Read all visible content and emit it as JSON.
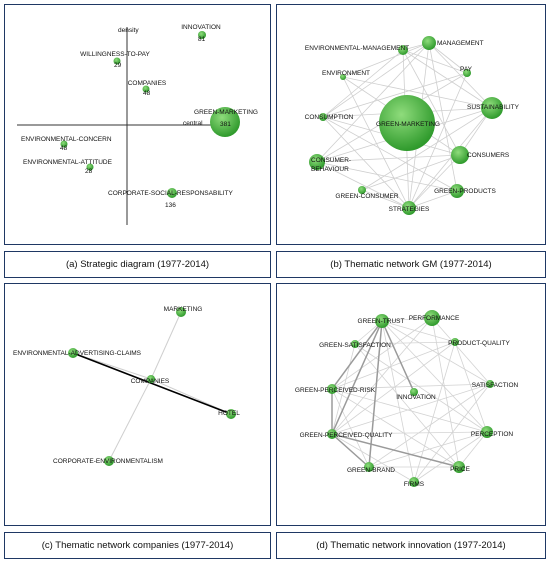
{
  "colors": {
    "node": "#3fae3a",
    "node_light": "#7bd06b",
    "edge": "#c8c8c8",
    "border": "#1f3864"
  },
  "panels": {
    "a": {
      "caption": "(a) Strategic diagram (1977-2014)",
      "axis_y_label": "density",
      "axis_x_label": "central",
      "themes": [
        {
          "name": "INNOVATION",
          "count": "81"
        },
        {
          "name": "WILLINGNESS-TO-PAY",
          "count": "29"
        },
        {
          "name": "COMPANIES",
          "count": "48"
        },
        {
          "name": "GREEN-MARKETING",
          "count": "381"
        },
        {
          "name": "ENVIRONMENTAL-CONCERN",
          "count": "48"
        },
        {
          "name": "ENVIRONMENTAL-ATTITUDE",
          "count": "28"
        },
        {
          "name": "CORPORATE-SOCIAL-RESPONSABILITY",
          "count": "136"
        }
      ]
    },
    "b": {
      "caption": "(b) Thematic network GM (1977-2014)",
      "nodes": [
        "ENVIRONMENTAL-MANAGEMENT",
        "MANAGEMENT",
        "PAY",
        "ENVIRONMENT",
        "SUSTAINABILITY",
        "CONSUMPTION",
        "GREEN-MARKETING",
        "CONSUMERS",
        "CONSUMER-BEHAVIOUR",
        "GREEN-PRODUCTS",
        "GREEN-CONSUMER",
        "STRATEGIES"
      ]
    },
    "c": {
      "caption": "(c) Thematic network companies (1977-2014)",
      "nodes": [
        "MARKETING",
        "ENVIRONMENTAL-ADVERTISING-CLAIMS",
        "COMPANIES",
        "HOTEL",
        "CORPORATE-ENVIRONMENTALISM"
      ]
    },
    "d": {
      "caption": "(d) Thematic network innovation (1977-2014)",
      "nodes": [
        "GREEN-TRUST",
        "PERFORMANCE",
        "GREEN-SATISFACTION",
        "PRODUCT-QUALITY",
        "GREEN-PERCEIVED-RISK",
        "SATISFACTION",
        "INNOVATION",
        "GREEN-PERCEIVED-QUALITY",
        "PERCEPTION",
        "GREEN-BRAND",
        "PRICE",
        "FIRMS"
      ]
    }
  }
}
